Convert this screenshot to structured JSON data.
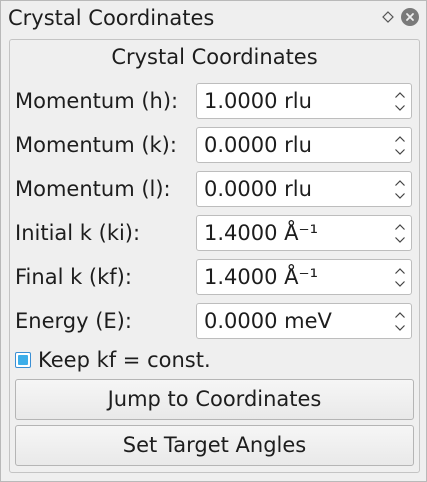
{
  "window": {
    "title": "Crystal Coordinates"
  },
  "group": {
    "title": "Crystal Coordinates"
  },
  "fields": [
    {
      "label": "Momentum (h):",
      "value": "1.0000 rlu"
    },
    {
      "label": "Momentum (k):",
      "value": "0.0000 rlu"
    },
    {
      "label": "Momentum (l):",
      "value": "0.0000 rlu"
    },
    {
      "label": "Initial k (ki):",
      "value": "1.4000 Å⁻¹"
    },
    {
      "label": "Final k (kf):",
      "value": "1.4000 Å⁻¹"
    },
    {
      "label": "Energy (E):",
      "value": "0.0000 meV"
    }
  ],
  "checkbox": {
    "label": "Keep kf = const.",
    "checked": true
  },
  "buttons": {
    "jump": "Jump to Coordinates",
    "set_angles": "Set Target Angles"
  },
  "colors": {
    "accent": "#3daee9",
    "window_bg": "#efefef",
    "field_bg": "#ffffff"
  },
  "icons": {
    "float": "float-diamond-icon",
    "close": "close-circle-icon",
    "spin_up": "chevron-up-icon",
    "spin_down": "chevron-down-icon"
  }
}
